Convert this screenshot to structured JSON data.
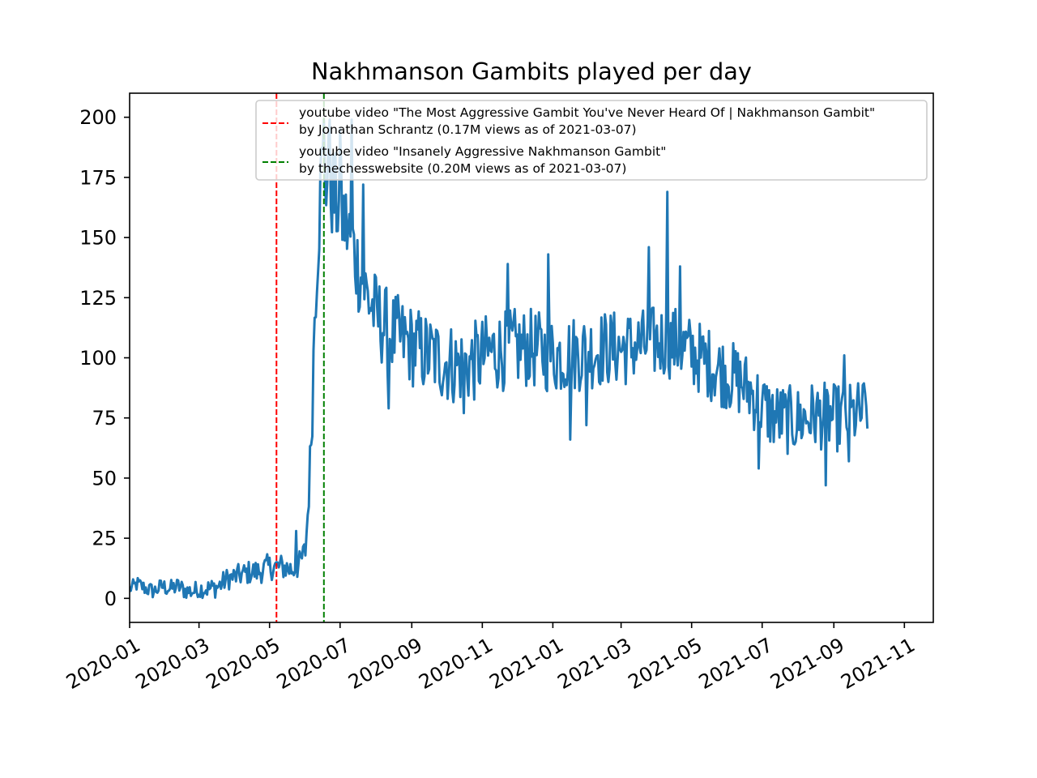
{
  "chart_data": {
    "type": "line",
    "title": "Nakhmanson Gambits played per day",
    "xlabel": "",
    "ylabel": "",
    "x_axis": "date",
    "xlim": [
      "2020-01-01",
      "2021-11-26"
    ],
    "ylim": [
      -10,
      210
    ],
    "y_ticks": [
      0,
      25,
      50,
      75,
      100,
      125,
      150,
      175,
      200
    ],
    "x_ticks": [
      "2020-01",
      "2020-03",
      "2020-05",
      "2020-07",
      "2020-09",
      "2020-11",
      "2021-01",
      "2021-03",
      "2021-05",
      "2021-07",
      "2021-09",
      "2021-11"
    ],
    "grid": false,
    "legend_position": "upper right",
    "series": [
      {
        "color": "#1f77b4",
        "points": [
          [
            "2020-01-01",
            4
          ],
          [
            "2020-01-08",
            6
          ],
          [
            "2020-01-15",
            4
          ],
          [
            "2020-01-22",
            3
          ],
          [
            "2020-01-29",
            5
          ],
          [
            "2020-02-05",
            4
          ],
          [
            "2020-02-12",
            5
          ],
          [
            "2020-02-19",
            3
          ],
          [
            "2020-02-26",
            3
          ],
          [
            "2020-03-04",
            4
          ],
          [
            "2020-03-11",
            4
          ],
          [
            "2020-03-18",
            5
          ],
          [
            "2020-03-25",
            8
          ],
          [
            "2020-04-01",
            9
          ],
          [
            "2020-04-08",
            10
          ],
          [
            "2020-04-15",
            11
          ],
          [
            "2020-04-22",
            11
          ],
          [
            "2020-04-29",
            13
          ],
          [
            "2020-05-06",
            13
          ],
          [
            "2020-05-13",
            13
          ],
          [
            "2020-05-20",
            12
          ],
          [
            "2020-05-27",
            14
          ],
          [
            "2020-06-01",
            20
          ],
          [
            "2020-06-03",
            35
          ],
          [
            "2020-06-05",
            55
          ],
          [
            "2020-06-07",
            80
          ],
          [
            "2020-06-09",
            120
          ],
          [
            "2020-06-11",
            140
          ],
          [
            "2020-06-13",
            160
          ],
          [
            "2020-06-15",
            178
          ],
          [
            "2020-06-20",
            175
          ],
          [
            "2020-06-27",
            165
          ],
          [
            "2020-07-04",
            158
          ],
          [
            "2020-07-11",
            148
          ],
          [
            "2020-07-18",
            135
          ],
          [
            "2020-07-25",
            125
          ],
          [
            "2020-08-01",
            118
          ],
          [
            "2020-08-08",
            113
          ],
          [
            "2020-08-15",
            110
          ],
          [
            "2020-08-22",
            108
          ],
          [
            "2020-08-29",
            106
          ],
          [
            "2020-09-05",
            104
          ],
          [
            "2020-09-12",
            102
          ],
          [
            "2020-09-19",
            101
          ],
          [
            "2020-09-26",
            99
          ],
          [
            "2020-10-03",
            98
          ],
          [
            "2020-10-10",
            97
          ],
          [
            "2020-10-17",
            97
          ],
          [
            "2020-10-24",
            98
          ],
          [
            "2020-10-31",
            100
          ],
          [
            "2020-11-07",
            102
          ],
          [
            "2020-11-14",
            103
          ],
          [
            "2020-11-21",
            103
          ],
          [
            "2020-11-28",
            104
          ],
          [
            "2020-12-05",
            104
          ],
          [
            "2020-12-12",
            104
          ],
          [
            "2020-12-19",
            103
          ],
          [
            "2020-12-26",
            102
          ],
          [
            "2021-01-02",
            101
          ],
          [
            "2021-01-09",
            101
          ],
          [
            "2021-01-16",
            102
          ],
          [
            "2021-01-23",
            102
          ],
          [
            "2021-01-30",
            103
          ],
          [
            "2021-02-06",
            103
          ],
          [
            "2021-02-13",
            104
          ],
          [
            "2021-02-20",
            104
          ],
          [
            "2021-02-27",
            104
          ],
          [
            "2021-03-06",
            104
          ],
          [
            "2021-03-13",
            105
          ],
          [
            "2021-03-20",
            105
          ],
          [
            "2021-03-27",
            106
          ],
          [
            "2021-04-03",
            107
          ],
          [
            "2021-04-10",
            107
          ],
          [
            "2021-04-17",
            106
          ],
          [
            "2021-04-24",
            104
          ],
          [
            "2021-05-01",
            102
          ],
          [
            "2021-05-08",
            100
          ],
          [
            "2021-05-15",
            98
          ],
          [
            "2021-05-22",
            96
          ],
          [
            "2021-05-29",
            94
          ],
          [
            "2021-06-05",
            92
          ],
          [
            "2021-06-12",
            90
          ],
          [
            "2021-06-19",
            87
          ],
          [
            "2021-06-26",
            83
          ],
          [
            "2021-07-03",
            79
          ],
          [
            "2021-07-10",
            76
          ],
          [
            "2021-07-17",
            75
          ],
          [
            "2021-07-24",
            74
          ],
          [
            "2021-07-31",
            74
          ],
          [
            "2021-08-07",
            75
          ],
          [
            "2021-08-14",
            76
          ],
          [
            "2021-08-21",
            76
          ],
          [
            "2021-08-28",
            75
          ],
          [
            "2021-09-04",
            75
          ],
          [
            "2021-09-11",
            75
          ],
          [
            "2021-09-18",
            76
          ],
          [
            "2021-09-25",
            77
          ],
          [
            "2021-09-30",
            80
          ]
        ],
        "noise_amplitude": {
          "2020-01-01": 3,
          "2020-06-01": 6,
          "2020-06-15": 22,
          "2020-07-25": 18,
          "2021-09-30": 14
        },
        "spikes": [
          [
            "2020-06-17",
            199
          ],
          [
            "2020-06-22",
            199
          ],
          [
            "2020-07-01",
            195
          ],
          [
            "2020-07-11",
            199
          ],
          [
            "2020-07-21",
            172
          ],
          [
            "2020-05-24",
            28
          ],
          [
            "2020-08-12",
            79
          ],
          [
            "2020-10-16",
            77
          ],
          [
            "2020-11-23",
            139
          ],
          [
            "2020-12-28",
            143
          ],
          [
            "2021-01-16",
            66
          ],
          [
            "2021-01-30",
            72
          ],
          [
            "2021-03-25",
            146
          ],
          [
            "2021-04-10",
            169
          ],
          [
            "2021-04-21",
            138
          ],
          [
            "2021-06-28",
            54
          ],
          [
            "2021-08-25",
            47
          ],
          [
            "2021-09-10",
            101
          ],
          [
            "2021-09-14",
            57
          ]
        ]
      }
    ],
    "vlines": [
      {
        "x": "2020-05-07",
        "color": "#ff0000",
        "style": "dashed",
        "label": "youtube video \"The Most Aggressive Gambit You've Never Heard Of | Nakhmanson Gambit\"\nby Jonathan Schrantz (0.17M views as of 2021-03-07)"
      },
      {
        "x": "2020-06-17",
        "color": "#008000",
        "style": "dashed",
        "label": "youtube video \"Insanely Aggressive Nakhmanson Gambit\"\nby thechesswebsite (0.20M views as of 2021-03-07)"
      }
    ]
  }
}
